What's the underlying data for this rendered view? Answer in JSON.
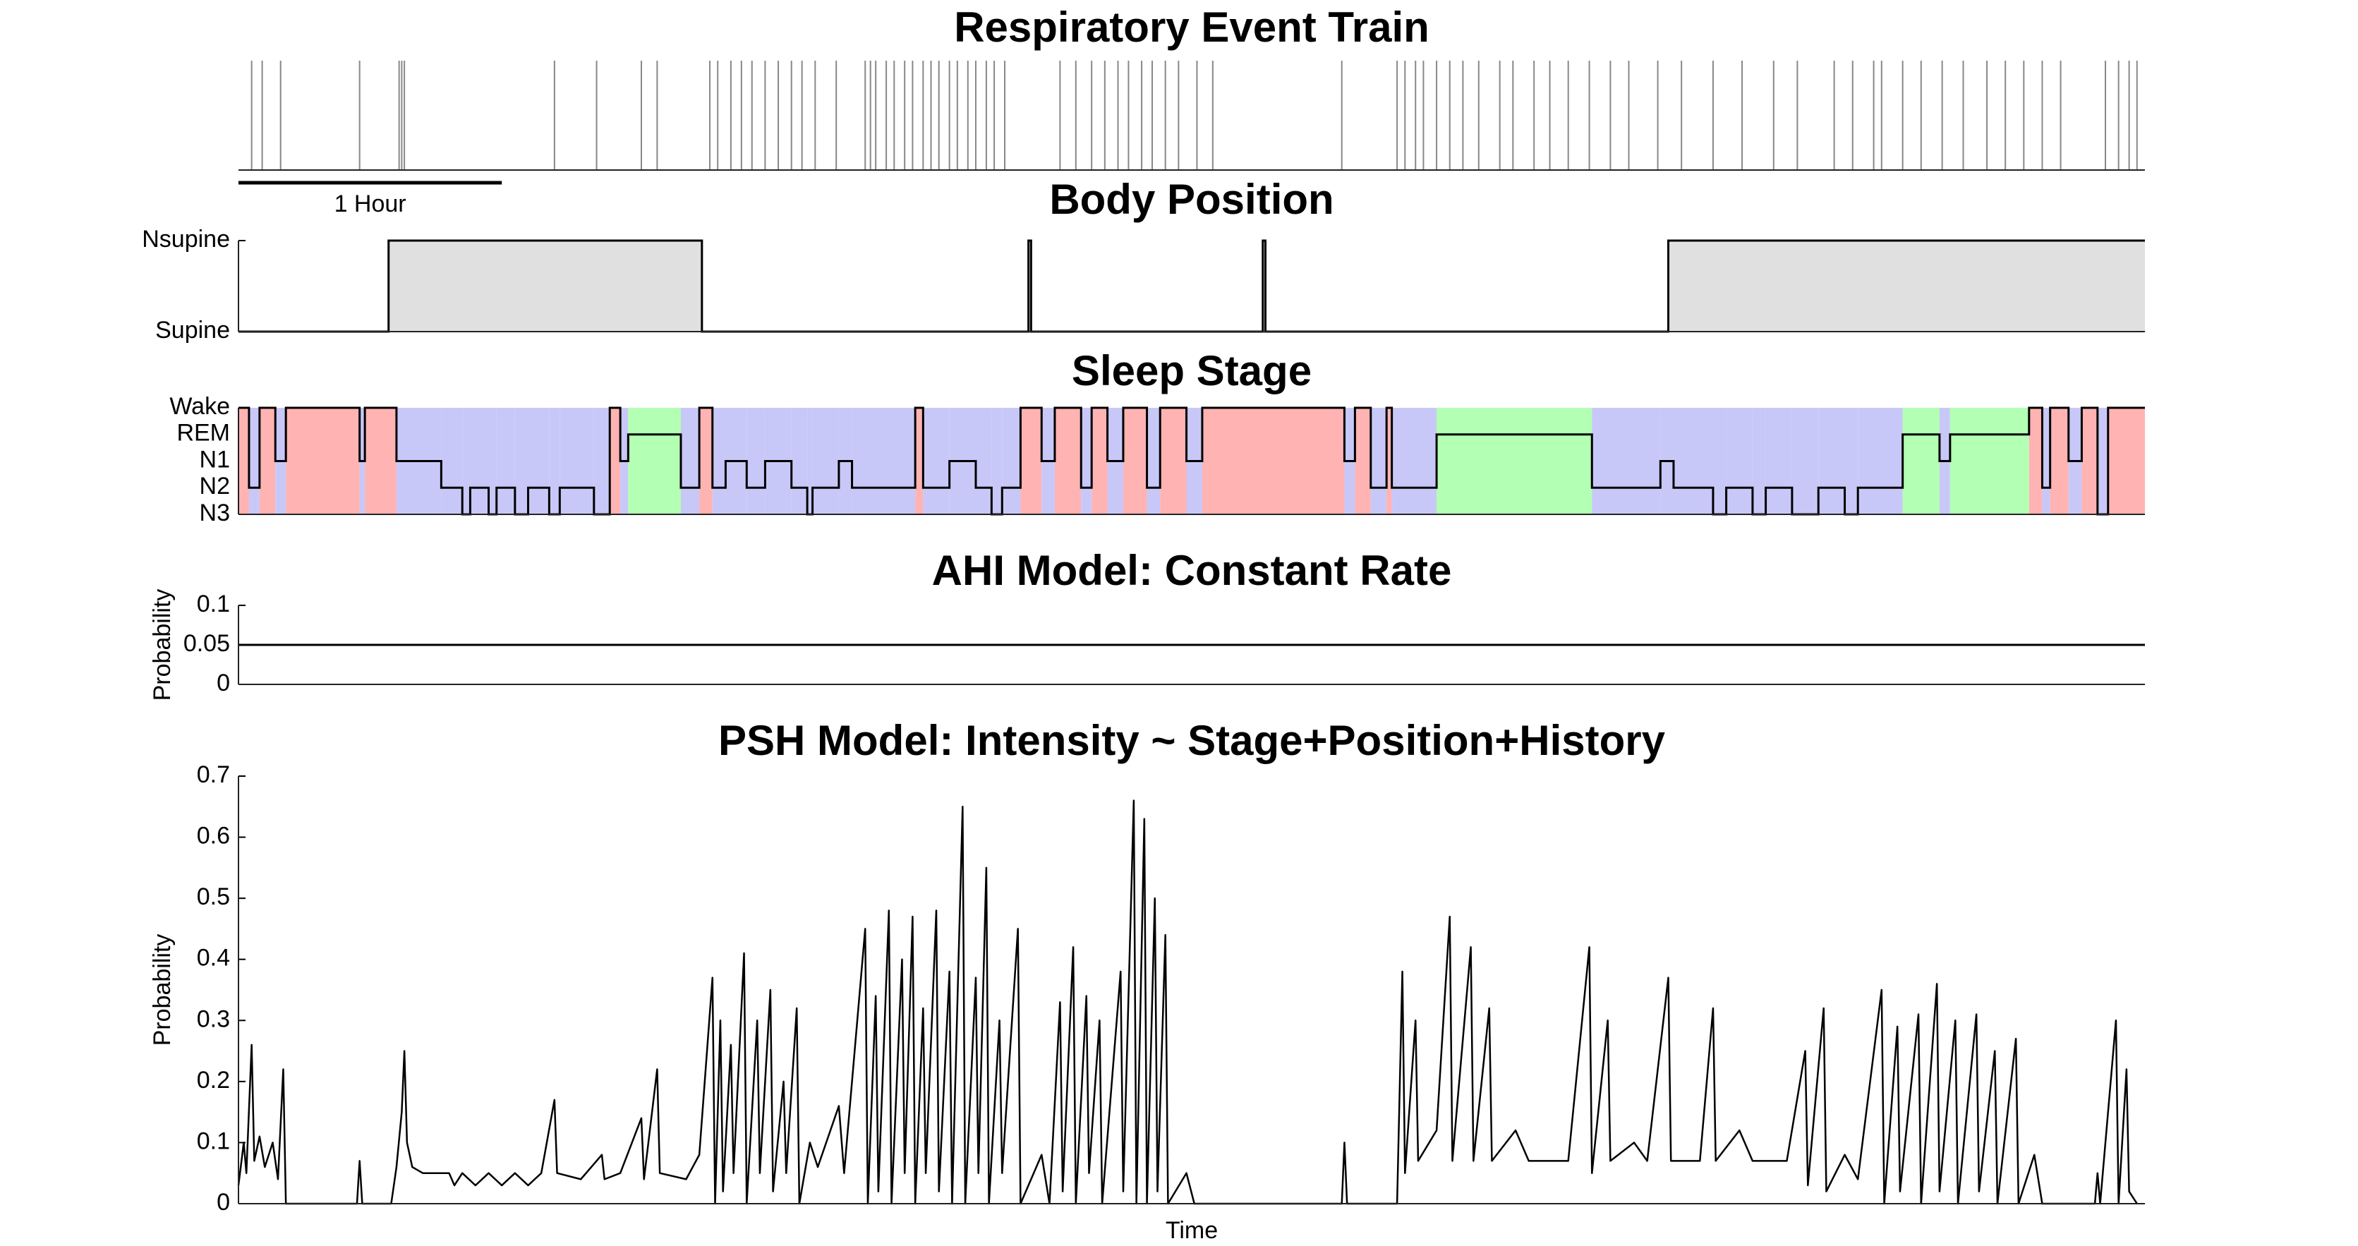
{
  "chart_data": [
    {
      "type": "event",
      "title": "Respiratory Event Train",
      "color": "#888888",
      "xlim": [
        0,
        7.24
      ],
      "scale_bar": {
        "label": "1 Hour",
        "length": 1
      },
      "x": [
        0.05,
        0.09,
        0.16,
        0.46,
        0.61,
        0.62,
        0.63,
        1.2,
        1.36,
        1.53,
        1.59,
        1.79,
        1.82,
        1.87,
        1.91,
        1.95,
        2.0,
        2.05,
        2.1,
        2.14,
        2.19,
        2.27,
        2.38,
        2.4,
        2.42,
        2.46,
        2.49,
        2.53,
        2.56,
        2.6,
        2.63,
        2.66,
        2.7,
        2.73,
        2.77,
        2.8,
        2.84,
        2.87,
        2.91,
        3.12,
        3.18,
        3.24,
        3.29,
        3.34,
        3.38,
        3.43,
        3.47,
        3.52,
        3.57,
        3.64,
        3.7,
        4.19,
        4.4,
        4.43,
        4.47,
        4.5,
        4.55,
        4.6,
        4.65,
        4.71,
        4.79,
        4.84,
        4.92,
        4.98,
        5.05,
        5.13,
        5.21,
        5.28,
        5.39,
        5.48,
        5.6,
        5.71,
        5.83,
        5.92,
        6.06,
        6.13,
        6.21,
        6.24,
        6.32,
        6.39,
        6.47,
        6.55,
        6.64,
        6.71,
        6.78,
        6.85,
        6.92,
        7.09,
        7.14,
        7.18,
        7.21
      ]
    },
    {
      "type": "step",
      "title": "Body Position",
      "color": "#000000",
      "fill": "#e0e0e0",
      "xlim": [
        0,
        7.24
      ],
      "ylim": [
        0,
        1
      ],
      "yticks": [
        {
          "value": 0,
          "label": "Supine"
        },
        {
          "value": 1,
          "label": "Nsupine"
        }
      ],
      "x": [
        0,
        0.57,
        1.76,
        3.0,
        3.01,
        3.89,
        3.9,
        5.43,
        7.24
      ],
      "values": [
        0,
        1,
        0,
        1,
        0,
        1,
        0,
        1,
        1
      ]
    },
    {
      "type": "hypnogram",
      "title": "Sleep Stage",
      "color": "#000000",
      "xlim": [
        0,
        7.24
      ],
      "ylim": [
        1,
        5
      ],
      "yticks": [
        {
          "value": 1,
          "label": "N3"
        },
        {
          "value": 2,
          "label": "N2"
        },
        {
          "value": 3,
          "label": "N1"
        },
        {
          "value": 4,
          "label": "REM"
        },
        {
          "value": 5,
          "label": "Wake"
        }
      ],
      "band_colors": [
        "#c8c8f8",
        "#c8c8f8",
        "#c8c8f8",
        "#b3ffb3",
        "#ffb3b3"
      ],
      "x": [
        0,
        0.04,
        0.08,
        0.14,
        0.18,
        0.46,
        0.48,
        0.6,
        0.77,
        0.85,
        0.88,
        0.95,
        0.98,
        1.05,
        1.1,
        1.18,
        1.22,
        1.35,
        1.41,
        1.45,
        1.48,
        1.68,
        1.75,
        1.8,
        1.85,
        1.93,
        2.0,
        2.1,
        2.16,
        2.18,
        2.28,
        2.33,
        2.57,
        2.6,
        2.7,
        2.8,
        2.86,
        2.9,
        2.97,
        3.05,
        3.1,
        3.2,
        3.24,
        3.3,
        3.36,
        3.45,
        3.5,
        3.6,
        3.66,
        4.2,
        4.24,
        4.3,
        4.36,
        4.38,
        4.55,
        5.14,
        5.4,
        5.45,
        5.6,
        5.65,
        5.75,
        5.8,
        5.9,
        6.0,
        6.1,
        6.15,
        6.32,
        6.46,
        6.5,
        6.8,
        6.85,
        6.88,
        6.95,
        7.0,
        7.06,
        7.1
      ],
      "values": [
        5,
        2,
        5,
        3,
        5,
        3,
        5,
        3,
        2,
        1,
        2,
        1,
        2,
        1,
        2,
        1,
        2,
        1,
        5,
        3,
        4,
        2,
        5,
        2,
        3,
        2,
        3,
        2,
        1,
        2,
        3,
        2,
        5,
        2,
        3,
        2,
        1,
        2,
        5,
        3,
        5,
        2,
        5,
        3,
        5,
        2,
        5,
        3,
        5,
        3,
        5,
        2,
        5,
        2,
        4,
        2,
        3,
        2,
        1,
        2,
        1,
        2,
        1,
        2,
        1,
        2,
        4,
        3,
        4,
        5,
        2,
        5,
        3,
        5,
        1,
        5
      ]
    },
    {
      "type": "constant",
      "title": "AHI Model: Constant Rate",
      "ylabel": "Probability",
      "color": "#000000",
      "xlim": [
        0,
        7.24
      ],
      "ylim": [
        0,
        0.1
      ],
      "yticks": [
        0,
        0.05,
        0.1
      ],
      "value": 0.05
    },
    {
      "type": "line",
      "title": "PSH Model: Intensity ~ Stage+Position+History",
      "ylabel": "Probability",
      "xlabel": "Time",
      "color": "#000000",
      "xlim": [
        0,
        7.24
      ],
      "ylim": [
        0,
        0.7
      ],
      "yticks": [
        0,
        0.1,
        0.2,
        0.3,
        0.4,
        0.5,
        0.6,
        0.7
      ],
      "x": [
        0.0,
        0.02,
        0.03,
        0.05,
        0.06,
        0.08,
        0.1,
        0.13,
        0.15,
        0.17,
        0.18,
        0.45,
        0.46,
        0.47,
        0.58,
        0.6,
        0.62,
        0.63,
        0.64,
        0.66,
        0.7,
        0.8,
        0.82,
        0.85,
        0.9,
        0.95,
        1.0,
        1.05,
        1.1,
        1.15,
        1.2,
        1.21,
        1.3,
        1.38,
        1.39,
        1.45,
        1.53,
        1.54,
        1.59,
        1.6,
        1.7,
        1.75,
        1.8,
        1.81,
        1.83,
        1.84,
        1.87,
        1.88,
        1.92,
        1.93,
        1.97,
        1.98,
        2.02,
        2.03,
        2.07,
        2.08,
        2.12,
        2.13,
        2.17,
        2.2,
        2.28,
        2.3,
        2.38,
        2.39,
        2.42,
        2.43,
        2.47,
        2.48,
        2.52,
        2.53,
        2.56,
        2.57,
        2.6,
        2.61,
        2.65,
        2.66,
        2.7,
        2.71,
        2.75,
        2.76,
        2.8,
        2.81,
        2.84,
        2.85,
        2.89,
        2.9,
        2.96,
        2.97,
        3.05,
        3.08,
        3.12,
        3.13,
        3.17,
        3.18,
        3.22,
        3.23,
        3.27,
        3.28,
        3.35,
        3.36,
        3.4,
        3.41,
        3.44,
        3.45,
        3.48,
        3.49,
        3.52,
        3.53,
        3.6,
        3.63,
        4.19,
        4.2,
        4.21,
        4.4,
        4.42,
        4.43,
        4.47,
        4.48,
        4.55,
        4.6,
        4.61,
        4.68,
        4.69,
        4.75,
        4.76,
        4.85,
        4.9,
        5.05,
        5.13,
        5.14,
        5.2,
        5.21,
        5.3,
        5.35,
        5.43,
        5.44,
        5.55,
        5.6,
        5.61,
        5.7,
        5.75,
        5.88,
        5.95,
        5.96,
        6.02,
        6.03,
        6.1,
        6.15,
        6.24,
        6.25,
        6.3,
        6.31,
        6.38,
        6.39,
        6.45,
        6.46,
        6.52,
        6.53,
        6.6,
        6.61,
        6.67,
        6.68,
        6.75,
        6.76,
        6.82,
        6.85,
        7.05,
        7.06,
        7.07,
        7.13,
        7.14,
        7.17,
        7.18,
        7.21
      ],
      "values": [
        0.03,
        0.1,
        0.05,
        0.26,
        0.07,
        0.11,
        0.06,
        0.1,
        0.04,
        0.22,
        0.0,
        0.0,
        0.07,
        0.0,
        0.0,
        0.06,
        0.15,
        0.25,
        0.1,
        0.06,
        0.05,
        0.05,
        0.03,
        0.05,
        0.03,
        0.05,
        0.03,
        0.05,
        0.03,
        0.05,
        0.17,
        0.05,
        0.04,
        0.08,
        0.04,
        0.05,
        0.14,
        0.04,
        0.22,
        0.05,
        0.04,
        0.08,
        0.37,
        0.0,
        0.3,
        0.02,
        0.26,
        0.05,
        0.41,
        0.0,
        0.3,
        0.05,
        0.35,
        0.02,
        0.2,
        0.05,
        0.32,
        0.0,
        0.1,
        0.06,
        0.16,
        0.05,
        0.45,
        0.0,
        0.34,
        0.02,
        0.48,
        0.0,
        0.4,
        0.05,
        0.47,
        0.0,
        0.32,
        0.05,
        0.48,
        0.02,
        0.38,
        0.0,
        0.65,
        0.0,
        0.37,
        0.05,
        0.55,
        0.0,
        0.3,
        0.05,
        0.45,
        0.0,
        0.08,
        0.0,
        0.33,
        0.02,
        0.42,
        0.0,
        0.34,
        0.05,
        0.3,
        0.0,
        0.38,
        0.02,
        0.66,
        0.0,
        0.63,
        0.0,
        0.5,
        0.02,
        0.44,
        0.0,
        0.05,
        0.0,
        0.0,
        0.1,
        0.0,
        0.0,
        0.38,
        0.05,
        0.3,
        0.07,
        0.12,
        0.47,
        0.07,
        0.42,
        0.07,
        0.32,
        0.07,
        0.12,
        0.07,
        0.07,
        0.42,
        0.05,
        0.3,
        0.07,
        0.1,
        0.07,
        0.37,
        0.07,
        0.07,
        0.32,
        0.07,
        0.12,
        0.07,
        0.07,
        0.25,
        0.03,
        0.32,
        0.02,
        0.08,
        0.04,
        0.35,
        0.0,
        0.29,
        0.02,
        0.31,
        0.0,
        0.36,
        0.02,
        0.3,
        0.0,
        0.31,
        0.02,
        0.25,
        0.0,
        0.27,
        0.0,
        0.08,
        0.0,
        0.0,
        0.05,
        0.0,
        0.3,
        0.0,
        0.22,
        0.02,
        0.0
      ]
    }
  ]
}
